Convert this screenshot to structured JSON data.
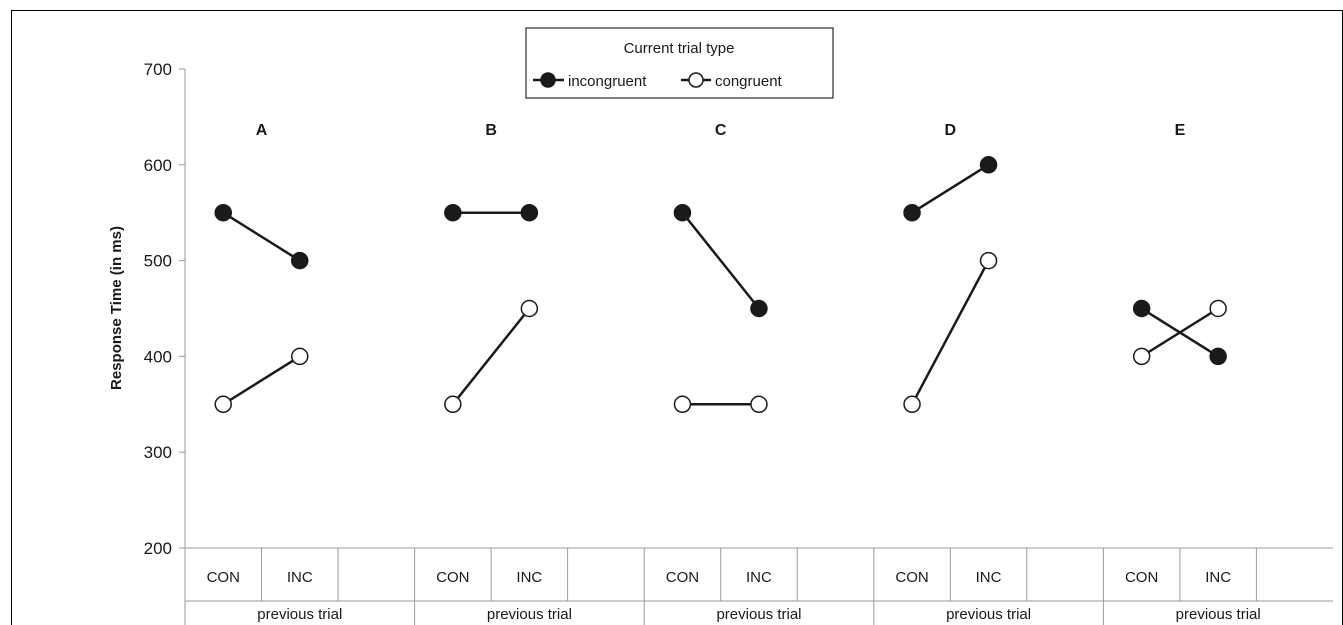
{
  "chart_data": {
    "type": "line",
    "ylabel": "Response Time (in ms)",
    "ylim": [
      200,
      700
    ],
    "yticks": [
      200,
      300,
      400,
      500,
      600,
      700
    ],
    "grid": false,
    "legend": {
      "title": "Current trial type",
      "position": "top-center",
      "entries": [
        "incongruent",
        "congruent"
      ]
    },
    "group_label": "previous trial",
    "categories": [
      "CON",
      "INC"
    ],
    "series_style": {
      "incongruent": {
        "marker_fill": "#1a1a1a"
      },
      "congruent": {
        "marker_fill": "#ffffff"
      }
    },
    "panels": [
      {
        "title": "A",
        "series": [
          {
            "name": "incongruent",
            "values": [
              550,
              500
            ]
          },
          {
            "name": "congruent",
            "values": [
              350,
              400
            ]
          }
        ]
      },
      {
        "title": "B",
        "series": [
          {
            "name": "incongruent",
            "values": [
              550,
              550
            ]
          },
          {
            "name": "congruent",
            "values": [
              350,
              450
            ]
          }
        ]
      },
      {
        "title": "C",
        "series": [
          {
            "name": "incongruent",
            "values": [
              550,
              450
            ]
          },
          {
            "name": "congruent",
            "values": [
              350,
              350
            ]
          }
        ]
      },
      {
        "title": "D",
        "series": [
          {
            "name": "incongruent",
            "values": [
              550,
              600
            ]
          },
          {
            "name": "congruent",
            "values": [
              350,
              500
            ]
          }
        ]
      },
      {
        "title": "E",
        "series": [
          {
            "name": "incongruent",
            "values": [
              450,
              400
            ]
          },
          {
            "name": "congruent",
            "values": [
              400,
              450
            ]
          }
        ]
      }
    ]
  }
}
